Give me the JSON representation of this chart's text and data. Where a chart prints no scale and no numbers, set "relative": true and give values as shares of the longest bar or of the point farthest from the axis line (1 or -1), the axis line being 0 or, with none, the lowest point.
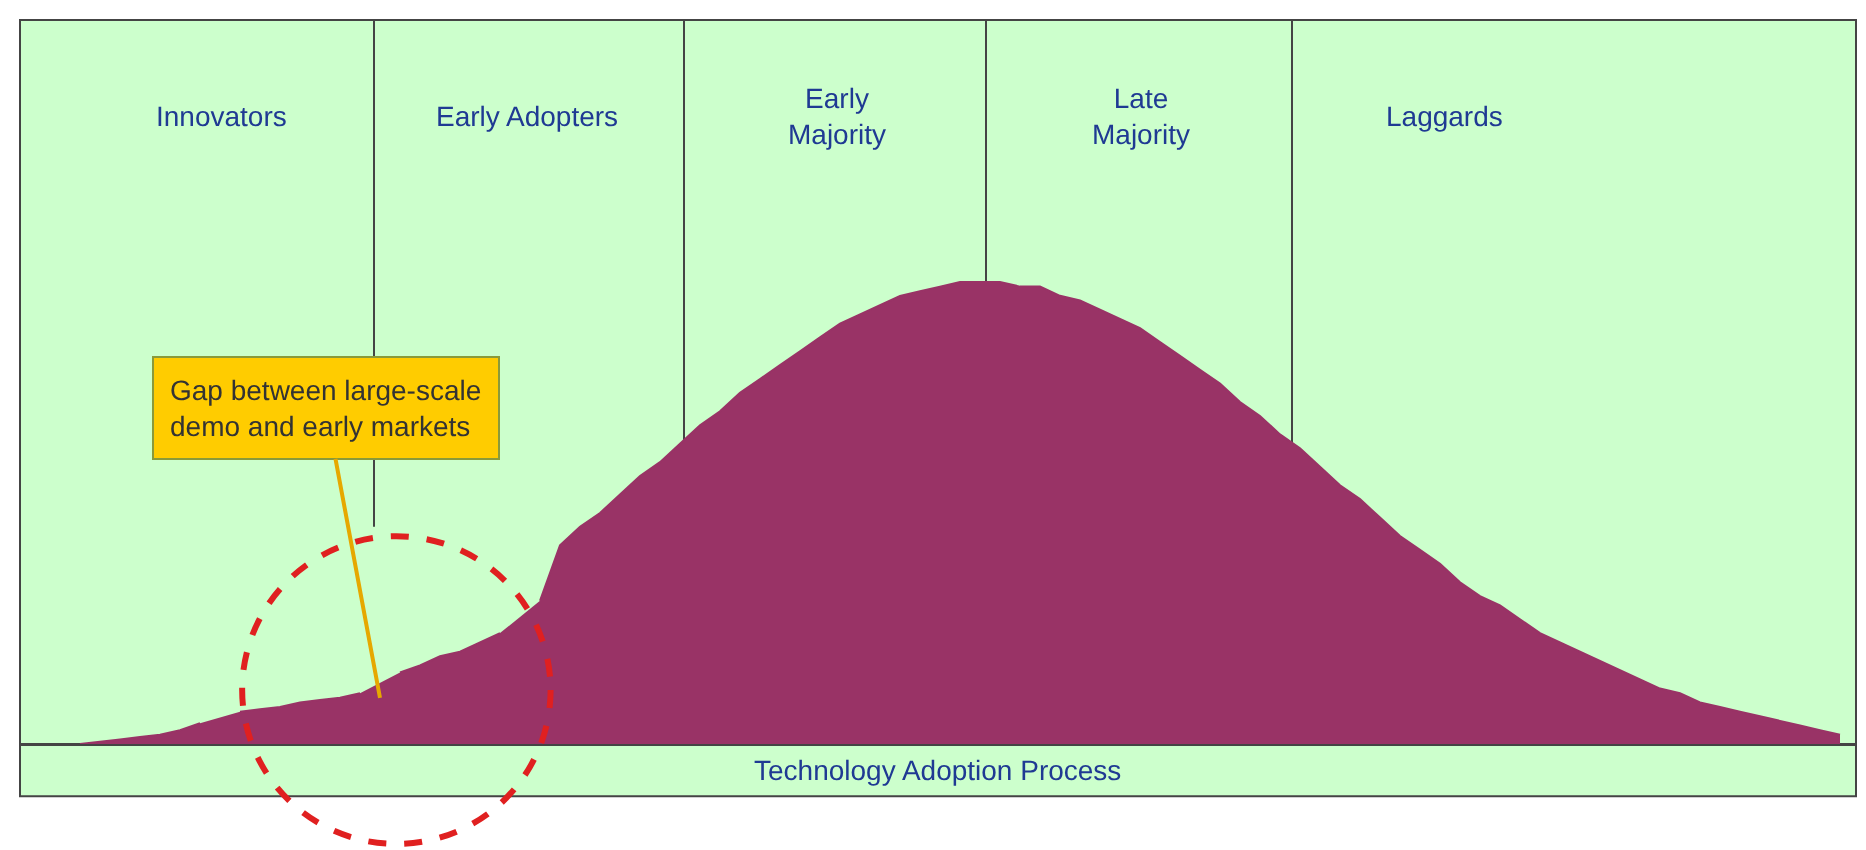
{
  "chart_data": {
    "type": "area",
    "relative": true,
    "xlabel": "Technology Adoption Process",
    "color": "#993366",
    "categories": [
      null,
      null,
      null,
      null,
      null,
      null,
      null,
      null,
      null,
      null,
      null,
      null,
      null,
      null,
      null,
      null,
      null,
      null,
      null,
      null,
      null,
      null,
      null,
      null,
      null,
      null,
      null,
      null,
      null,
      null,
      null,
      null,
      null,
      null,
      null,
      null,
      null,
      null,
      null,
      null,
      null,
      null,
      null,
      null,
      null,
      null,
      null,
      null,
      null,
      null,
      null,
      null,
      null,
      null,
      null,
      null,
      null,
      null,
      null,
      null,
      null,
      null,
      null,
      null,
      null,
      null,
      null,
      null,
      null,
      null,
      null,
      null,
      null,
      null,
      null,
      null,
      null,
      null,
      null,
      null,
      null,
      null,
      null,
      null,
      null,
      null,
      null,
      null,
      null,
      null,
      null,
      null
    ],
    "values": [
      null,
      null,
      null,
      0,
      0.005,
      0.01,
      0.015,
      0.02,
      0.03,
      0.045,
      null,
      0.07,
      0.075,
      0.08,
      0.09,
      0.095,
      0.1,
      0.11,
      null,
      0.155,
      0.17,
      0.19,
      0.2,
      0.22,
      0.24,
      null,
      0.31,
      0.43,
      0.47,
      0.5,
      0.54,
      0.58,
      0.61,
      0.65,
      0.69,
      0.72,
      0.76,
      0.79,
      0.82,
      0.85,
      0.88,
      0.91,
      0.93,
      0.95,
      0.97,
      0.98,
      0.99,
      1,
      1,
      1,
      0.99,
      0.99,
      0.97,
      0.96,
      0.94,
      0.92,
      0.9,
      0.87,
      0.84,
      0.81,
      0.78,
      0.74,
      0.71,
      0.67,
      0.64,
      0.6,
      0.56,
      0.53,
      0.49,
      0.45,
      0.42,
      0.39,
      0.35,
      0.32,
      0.3,
      0.27,
      0.24,
      0.22,
      0.2,
      0.18,
      0.16,
      0.14,
      0.12,
      0.11,
      0.09,
      0.08,
      0.07,
      0.06,
      0.05,
      0.04,
      0.03,
      0.02
    ],
    "annotations": [
      "Innovators",
      "Early Adopters",
      "Early Majority",
      "Late Majority",
      "Laggards",
      "Gap between large-scale demo and early markets"
    ]
  }
}
